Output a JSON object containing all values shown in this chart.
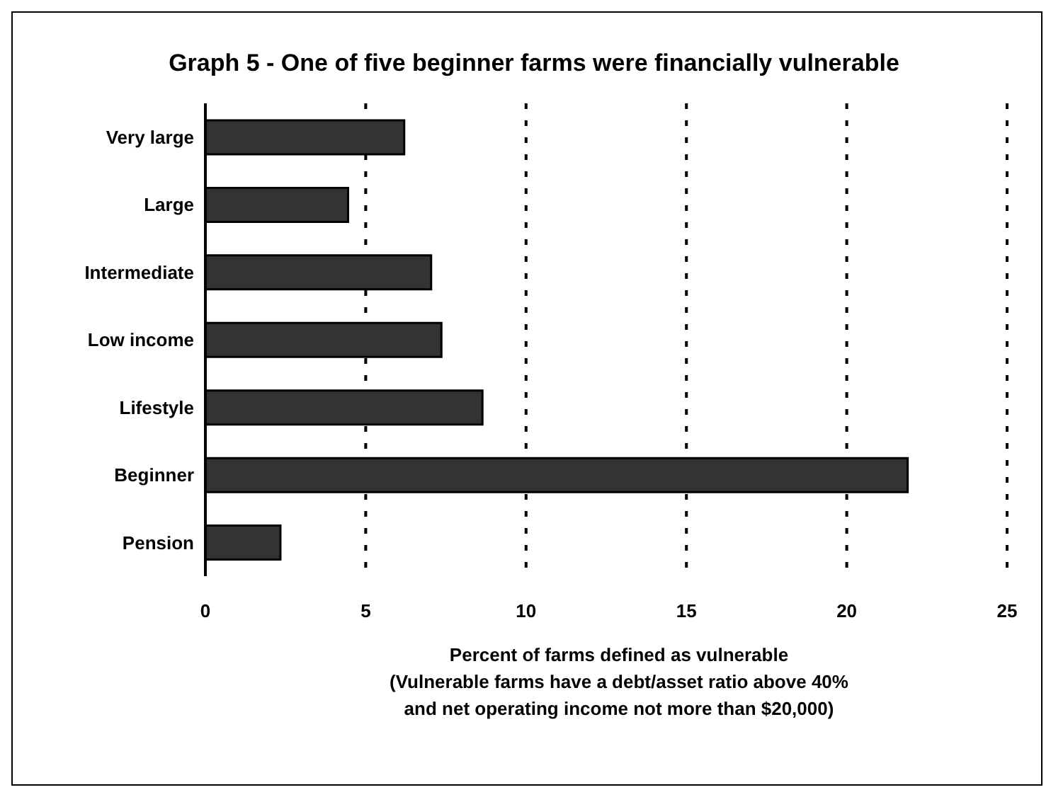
{
  "chart_data": {
    "type": "bar",
    "orientation": "horizontal",
    "title": "Graph 5 - One of five beginner farms were financially vulnerable",
    "xlabel": "Percent of farms defined as vulnerable\n(Vulnerable farms have a debt/asset ratio above 40%\nand net operating income not more than $20,000)",
    "categories": [
      "Very large",
      "Large",
      "Intermediate",
      "Low income",
      "Lifestyle",
      "Beginner",
      "Pension"
    ],
    "values": [
      6.2,
      4.45,
      7.04,
      7.36,
      8.64,
      21.9,
      2.34
    ],
    "color": "#333333",
    "xlim": [
      0,
      25
    ],
    "xticks": [
      0,
      5,
      10,
      15,
      20,
      25
    ],
    "grid": "x"
  }
}
